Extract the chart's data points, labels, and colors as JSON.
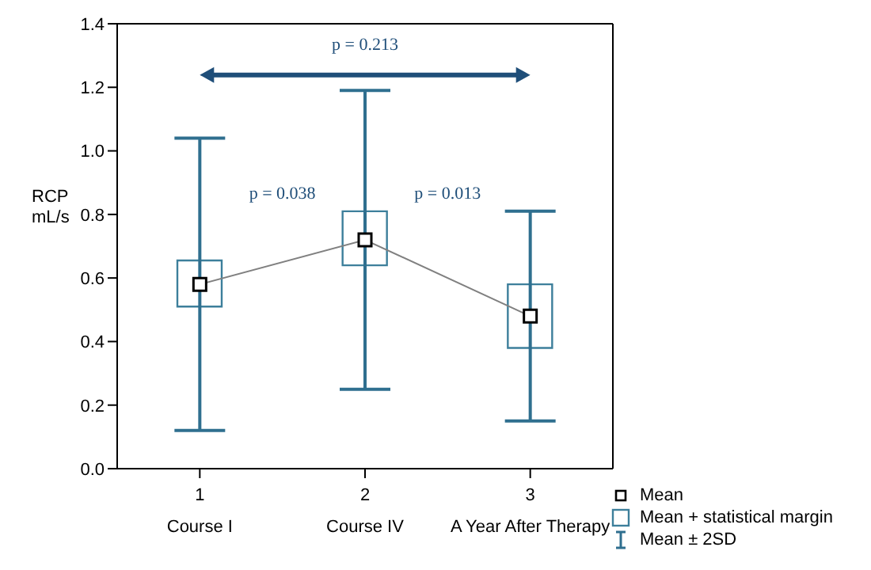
{
  "chart_data": {
    "type": "box",
    "ylabel": "RCP\nmL/s",
    "categories": [
      "1",
      "2",
      "3"
    ],
    "ylim": [
      0,
      1.4
    ],
    "yticks": [
      {
        "value": 0,
        "label": "0.0"
      },
      0.2,
      0.4,
      0.6,
      0.8,
      {
        "value": 1,
        "label": "1.0"
      },
      1.2,
      1.4
    ],
    "grid": false,
    "legend": "bottom right",
    "marker": "square",
    "series": [
      {
        "name": "Mean",
        "type": "line",
        "color": "#808080",
        "values": [
          0.58,
          0.72,
          0.48
        ]
      },
      {
        "name": "Mean + statistical margin",
        "color": "#3d7f9b",
        "boxes": [
          {
            "low": 0.12,
            "q1": 0.51,
            "q3": 0.655,
            "high": 1.04
          },
          {
            "low": 0.25,
            "q1": 0.64,
            "q3": 0.81,
            "high": 1.19
          },
          {
            "low": 0.15,
            "q1": 0.38,
            "q3": 0.58,
            "high": 0.81
          }
        ]
      }
    ],
    "annotations": [
      "Course I",
      "Course IV",
      "A Year After Therapy",
      "p = 0.213",
      "p = 0.038",
      "p = 0.013",
      "Mean ± 2SD"
    ]
  }
}
